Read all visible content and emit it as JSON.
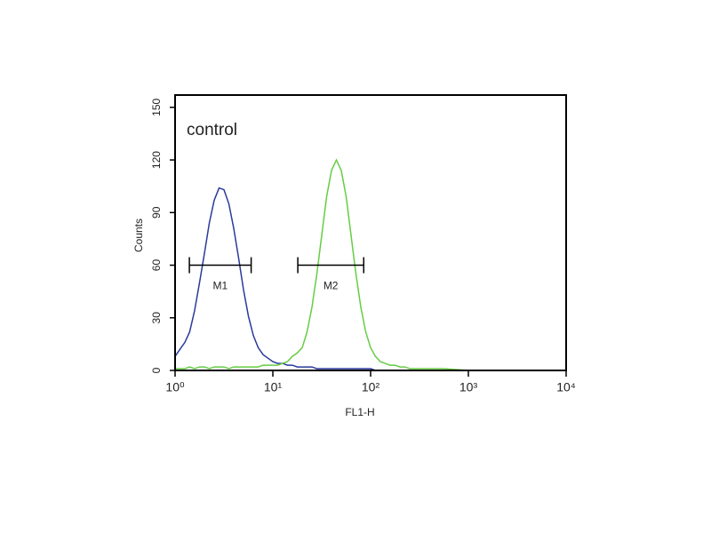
{
  "chart_data": {
    "type": "line",
    "annotation": "control",
    "xlabel": "FL1-H",
    "ylabel": "Counts",
    "xscale": "log",
    "xlim": [
      1,
      10000
    ],
    "ylim": [
      0,
      157
    ],
    "xticks": [
      {
        "value": 1,
        "label": "10⁰"
      },
      {
        "value": 10,
        "label": "10¹"
      },
      {
        "value": 100,
        "label": "10²"
      },
      {
        "value": 1000,
        "label": "10³"
      },
      {
        "value": 10000,
        "label": "10⁴"
      }
    ],
    "yticks": [
      0,
      30,
      60,
      90,
      120,
      150
    ],
    "x": [
      1,
      1.12,
      1.26,
      1.41,
      1.58,
      1.78,
      2,
      2.24,
      2.51,
      2.82,
      3.16,
      3.55,
      3.98,
      4.47,
      5.01,
      5.62,
      6.31,
      7.08,
      7.94,
      8.91,
      10,
      11.2,
      12.6,
      14.1,
      15.8,
      17.8,
      20,
      22.4,
      25.1,
      28.2,
      31.6,
      35.5,
      39.8,
      44.7,
      50.1,
      56.2,
      63.1,
      70.8,
      79.4,
      89.1,
      100,
      112,
      126,
      141,
      158,
      178,
      200,
      224,
      251,
      282,
      316,
      562,
      1000,
      1778,
      3162,
      5623,
      10000
    ],
    "series": [
      {
        "color": "#2b3a9a",
        "values": [
          8,
          12,
          16,
          22,
          34,
          50,
          67,
          84,
          97,
          104,
          103,
          95,
          81,
          64,
          46,
          31,
          20,
          13,
          9,
          7,
          5,
          4,
          4,
          3,
          3,
          2,
          2,
          2,
          2,
          1,
          1,
          1,
          1,
          1,
          1,
          1,
          1,
          1,
          1,
          1,
          1,
          0,
          0,
          0,
          0,
          0,
          0,
          0,
          0,
          0,
          0,
          0,
          0,
          0,
          0,
          0,
          0
        ]
      },
      {
        "color": "#66cc44",
        "values": [
          1,
          1,
          1,
          2,
          1,
          2,
          2,
          1,
          2,
          2,
          2,
          1,
          2,
          2,
          2,
          2,
          2,
          2,
          3,
          3,
          3,
          3,
          4,
          5,
          8,
          10,
          13,
          22,
          36,
          55,
          77,
          99,
          114,
          120,
          114,
          99,
          77,
          55,
          36,
          22,
          13,
          8,
          5,
          4,
          3,
          3,
          2,
          2,
          1,
          1,
          1,
          1,
          0,
          0,
          0,
          0,
          0
        ]
      }
    ],
    "markers": [
      {
        "label": "M1",
        "x": [
          1.4,
          6
        ],
        "y": 60
      },
      {
        "label": "M2",
        "x": [
          18,
          85
        ],
        "y": 60
      }
    ]
  }
}
